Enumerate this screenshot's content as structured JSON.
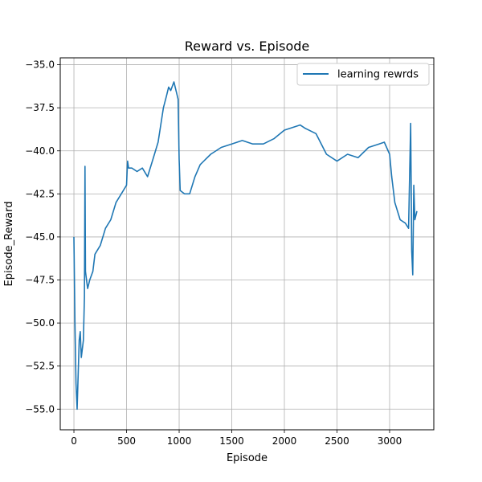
{
  "chart_data": {
    "type": "line",
    "title": "Reward vs. Episode",
    "xlabel": "Episode",
    "ylabel": "Episode_Reward",
    "xlim": [
      -130,
      3420
    ],
    "ylim": [
      -56.2,
      -34.6
    ],
    "xticks": [
      0,
      500,
      1000,
      1500,
      2000,
      2500,
      3000
    ],
    "xtick_labels": [
      "0",
      "500",
      "1000",
      "1500",
      "2000",
      "2500",
      "3000"
    ],
    "yticks": [
      -35.0,
      -37.5,
      -40.0,
      -42.5,
      -45.0,
      -47.5,
      -50.0,
      -52.5,
      -55.0
    ],
    "ytick_labels": [
      "−35.0",
      "−37.5",
      "−40.0",
      "−42.5",
      "−45.0",
      "−47.5",
      "−50.0",
      "−52.5",
      "−55.0"
    ],
    "grid": true,
    "legend_position": "top-right",
    "series": [
      {
        "name": "learning rewrds",
        "color": "#1f77b4",
        "x": [
          0,
          10,
          20,
          30,
          40,
          50,
          60,
          70,
          80,
          90,
          100,
          105,
          110,
          120,
          130,
          150,
          180,
          200,
          250,
          300,
          350,
          400,
          450,
          500,
          510,
          520,
          550,
          600,
          650,
          700,
          750,
          800,
          850,
          880,
          900,
          920,
          950,
          970,
          990,
          1000,
          1010,
          1050,
          1100,
          1150,
          1200,
          1300,
          1400,
          1500,
          1600,
          1700,
          1800,
          1900,
          2000,
          2100,
          2150,
          2200,
          2300,
          2400,
          2500,
          2600,
          2700,
          2800,
          2900,
          2950,
          3000,
          3020,
          3050,
          3100,
          3150,
          3180,
          3200,
          3210,
          3220,
          3230,
          3240,
          3260
        ],
        "y": [
          -45.0,
          -50.0,
          -53.5,
          -55.0,
          -53.0,
          -51.0,
          -50.5,
          -52.0,
          -51.5,
          -51.0,
          -48.5,
          -40.9,
          -47.0,
          -47.5,
          -48.0,
          -47.5,
          -47.0,
          -46.0,
          -45.5,
          -44.5,
          -44.0,
          -43.0,
          -42.5,
          -42.0,
          -40.6,
          -41.0,
          -41.0,
          -41.2,
          -41.0,
          -41.5,
          -40.5,
          -39.5,
          -37.5,
          -36.8,
          -36.3,
          -36.5,
          -36.0,
          -36.5,
          -37.0,
          -40.5,
          -42.3,
          -42.5,
          -42.5,
          -41.5,
          -40.8,
          -40.2,
          -39.8,
          -39.6,
          -39.4,
          -39.6,
          -39.6,
          -39.3,
          -38.8,
          -38.6,
          -38.5,
          -38.7,
          -39.0,
          -40.2,
          -40.6,
          -40.2,
          -40.4,
          -39.8,
          -39.6,
          -39.5,
          -40.2,
          -41.5,
          -43.0,
          -44.0,
          -44.2,
          -44.5,
          -38.4,
          -45.8,
          -47.2,
          -42.0,
          -44.0,
          -43.5
        ]
      }
    ]
  }
}
